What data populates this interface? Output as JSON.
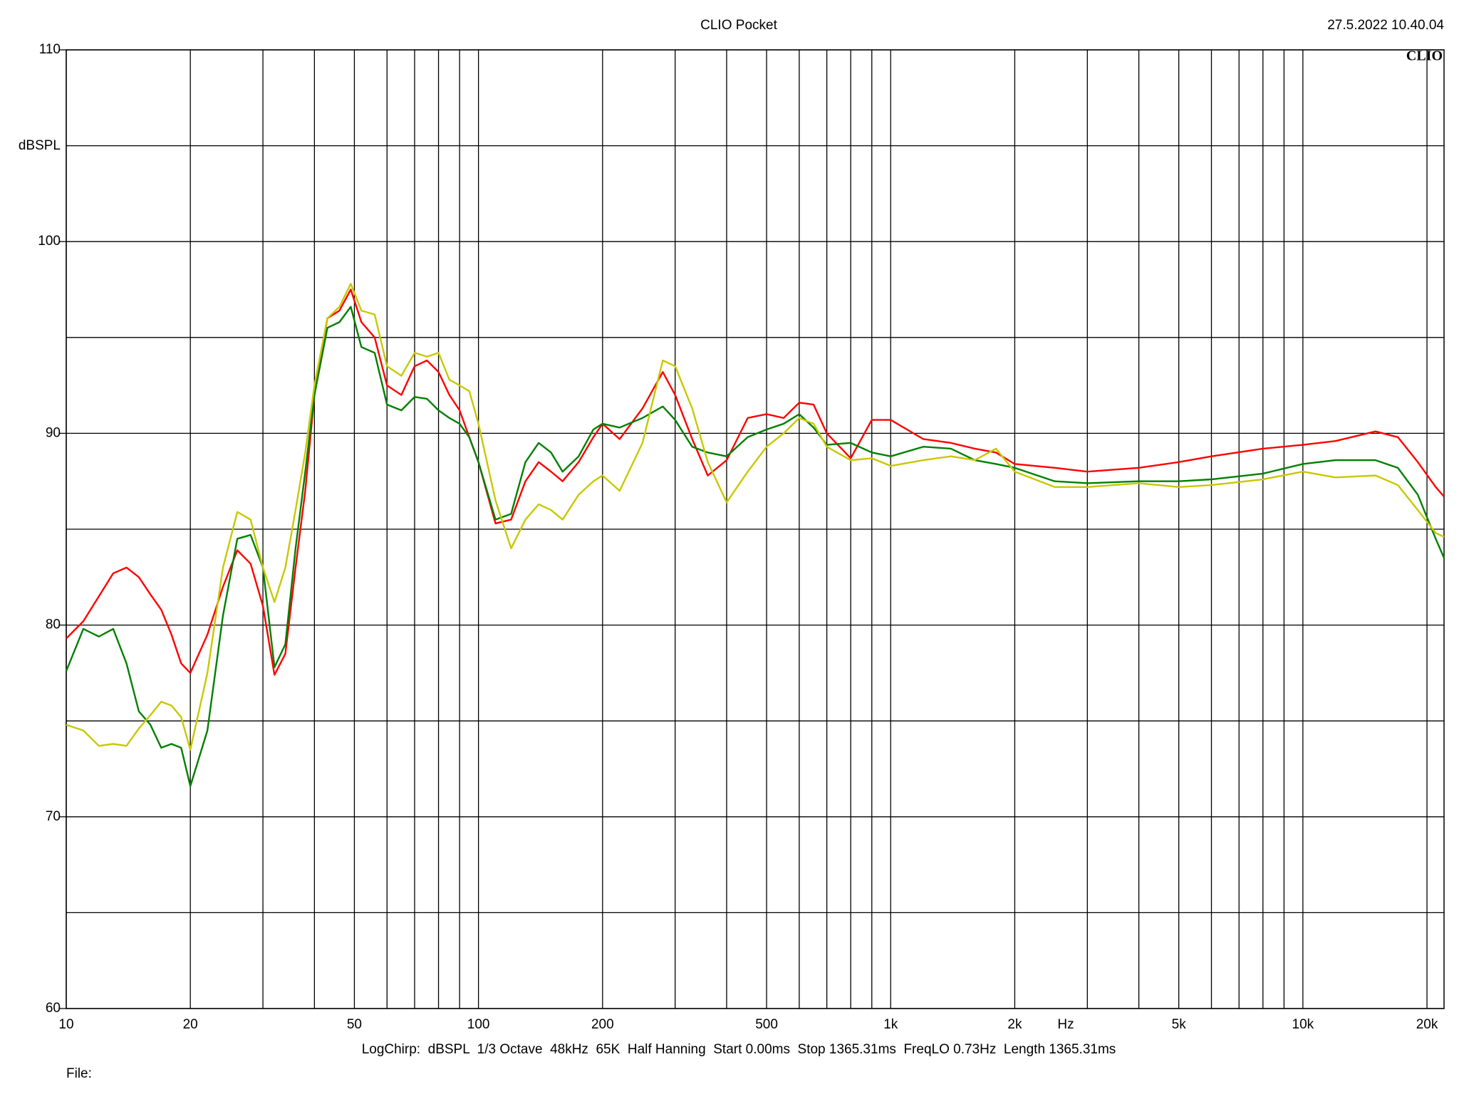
{
  "chart_data": {
    "type": "line",
    "title": "CLIO Pocket",
    "timestamp": "27.5.2022 10.40.04",
    "logo": "CLIO",
    "y_label": "dBSPL",
    "x_label": "Hz",
    "footer": "LogChirp:  dBSPL  1/3 Octave  48kHz  65K  Half Hanning  Start 0.00ms  Stop 1365.31ms  FreqLO 0.73Hz  Length 1365.31ms",
    "file_label": "File:",
    "x_scale": "log",
    "grid": true,
    "xlim": [
      10,
      22000
    ],
    "ylim": [
      60,
      110
    ],
    "xticks": [
      10,
      20,
      50,
      100,
      200,
      500,
      {
        "value": 1000,
        "label": "1k"
      },
      {
        "value": 2000,
        "label": "2k"
      },
      {
        "value": 5000,
        "label": "5k"
      },
      {
        "value": 10000,
        "label": "10k"
      },
      {
        "value": 20000,
        "label": "20k"
      }
    ],
    "xminor": [
      30,
      40,
      60,
      70,
      80,
      90,
      300,
      400,
      600,
      700,
      800,
      900,
      3000,
      4000,
      6000,
      7000,
      8000,
      9000
    ],
    "yticks": [
      60,
      70,
      80,
      90,
      100,
      110
    ],
    "yminor": [
      65,
      75,
      85,
      95,
      105
    ],
    "x": [
      10,
      11,
      12,
      13,
      14,
      15,
      16,
      17,
      18,
      19,
      20,
      22,
      24,
      26,
      28,
      30,
      32,
      34,
      36,
      38,
      40,
      43,
      46,
      49,
      52,
      56,
      60,
      65,
      70,
      75,
      80,
      85,
      90,
      95,
      100,
      110,
      120,
      130,
      140,
      150,
      160,
      175,
      190,
      200,
      220,
      250,
      280,
      300,
      330,
      360,
      400,
      450,
      500,
      550,
      600,
      650,
      700,
      800,
      900,
      1000,
      1200,
      1400,
      1600,
      1800,
      2000,
      2500,
      3000,
      4000,
      5000,
      6000,
      8000,
      10000,
      12000,
      15000,
      17000,
      19000,
      21000,
      22000
    ],
    "series": [
      {
        "color": "#ff0000",
        "values": [
          79.3,
          80.2,
          81.5,
          82.7,
          83,
          82.5,
          81.6,
          80.8,
          79.5,
          78,
          77.5,
          79.5,
          82,
          83.9,
          83.2,
          81,
          77.4,
          78.5,
          83,
          87,
          92,
          96,
          96.4,
          97.5,
          95.8,
          95,
          92.5,
          92,
          93.5,
          93.8,
          93.2,
          92,
          91.2,
          89.8,
          88.5,
          85.3,
          85.5,
          87.5,
          88.5,
          88,
          87.5,
          88.5,
          89.8,
          90.5,
          89.7,
          91.3,
          93.2,
          92,
          89.7,
          87.8,
          88.6,
          90.8,
          91,
          90.8,
          91.6,
          91.5,
          90,
          88.7,
          90.7,
          90.7,
          89.7,
          89.5,
          89.2,
          89,
          88.4,
          88.2,
          88,
          88.2,
          88.5,
          88.8,
          89.2,
          89.4,
          89.6,
          90.1,
          89.8,
          88.5,
          87.2,
          86.7
        ]
      },
      {
        "color": "#008000",
        "values": [
          77.6,
          79.8,
          79.4,
          79.8,
          78,
          75.5,
          74.8,
          73.6,
          73.8,
          73.6,
          71.6,
          74.5,
          80.5,
          84.5,
          84.7,
          83,
          77.8,
          79,
          84,
          88,
          92,
          95.5,
          95.8,
          96.6,
          94.5,
          94.2,
          91.5,
          91.2,
          91.9,
          91.8,
          91.2,
          90.8,
          90.5,
          89.8,
          88.5,
          85.5,
          85.8,
          88.5,
          89.5,
          89,
          88,
          88.8,
          90.2,
          90.5,
          90.3,
          90.8,
          91.4,
          90.7,
          89.3,
          89,
          88.8,
          89.8,
          90.2,
          90.5,
          91,
          90.3,
          89.4,
          89.5,
          89,
          88.8,
          89.3,
          89.2,
          88.6,
          88.4,
          88.2,
          87.5,
          87.4,
          87.5,
          87.5,
          87.6,
          87.9,
          88.4,
          88.6,
          88.6,
          88.2,
          86.8,
          84.5,
          83.5
        ]
      },
      {
        "color": "#c8c800",
        "values": [
          74.8,
          74.5,
          73.7,
          73.8,
          73.7,
          74.6,
          75.3,
          76,
          75.8,
          75.2,
          73.5,
          77.5,
          83,
          85.9,
          85.5,
          83,
          81.2,
          83,
          86,
          89,
          92.5,
          96,
          96.6,
          97.8,
          96.4,
          96.2,
          93.5,
          93,
          94.2,
          94,
          94.2,
          92.8,
          92.5,
          92.2,
          90.5,
          86.5,
          84,
          85.5,
          86.3,
          86,
          85.5,
          86.8,
          87.5,
          87.8,
          87,
          89.5,
          93.8,
          93.5,
          91.3,
          88.5,
          86.4,
          88,
          89.3,
          90,
          90.8,
          90.5,
          89.3,
          88.6,
          88.7,
          88.3,
          88.6,
          88.8,
          88.6,
          89.2,
          88,
          87.2,
          87.2,
          87.4,
          87.2,
          87.3,
          87.6,
          88,
          87.7,
          87.8,
          87.3,
          86,
          84.8,
          84.6
        ]
      }
    ]
  }
}
